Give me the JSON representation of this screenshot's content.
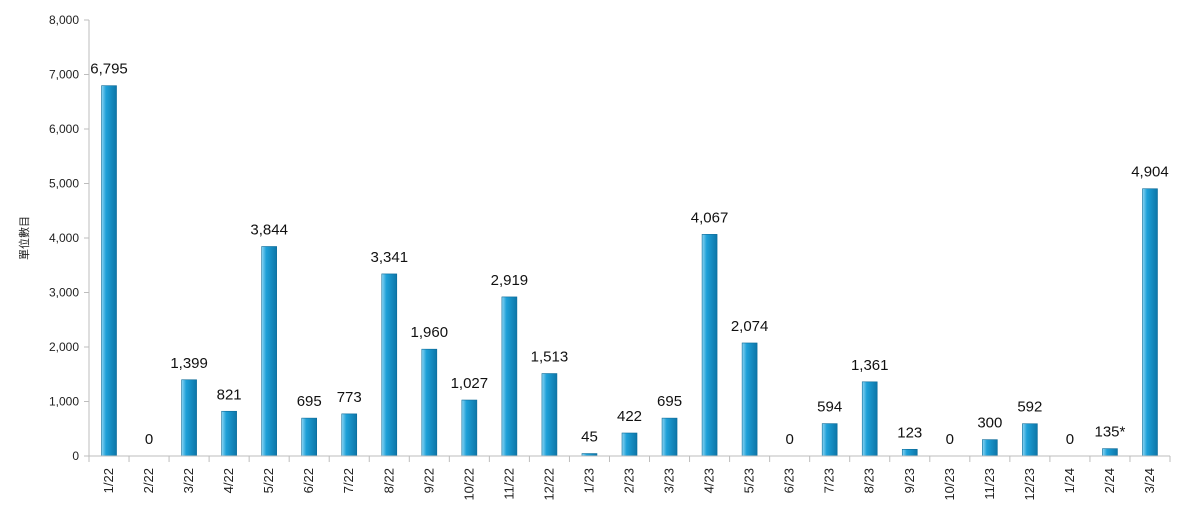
{
  "chart_data": {
    "type": "bar",
    "title": "",
    "xlabel": "",
    "ylabel": "單位數目",
    "ylim": [
      0,
      8000
    ],
    "yticks": [
      0,
      1000,
      2000,
      3000,
      4000,
      5000,
      6000,
      7000,
      8000
    ],
    "ytick_labels": [
      "0",
      "1,000",
      "2,000",
      "3,000",
      "4,000",
      "5,000",
      "6,000",
      "7,000",
      "8,000"
    ],
    "grid": false,
    "legend": "none",
    "bar_color": "#1ea0d8",
    "bar_highlight": "#8ed6f3",
    "categories": [
      "1/22",
      "2/22",
      "3/22",
      "4/22",
      "5/22",
      "6/22",
      "7/22",
      "8/22",
      "9/22",
      "10/22",
      "11/22",
      "12/22",
      "1/23",
      "2/23",
      "3/23",
      "4/23",
      "5/23",
      "6/23",
      "7/23",
      "8/23",
      "9/23",
      "10/23",
      "11/23",
      "12/23",
      "1/24",
      "2/24",
      "3/24"
    ],
    "values": [
      6795,
      0,
      1399,
      821,
      3844,
      695,
      773,
      3341,
      1960,
      1027,
      2919,
      1513,
      45,
      422,
      695,
      4067,
      2074,
      0,
      594,
      1361,
      123,
      0,
      300,
      592,
      0,
      135,
      4904
    ],
    "data_labels": [
      "6,795",
      "0",
      "1,399",
      "821",
      "3,844",
      "695",
      "773",
      "3,341",
      "1,960",
      "1,027",
      "2,919",
      "1,513",
      "45",
      "422",
      "695",
      "4,067",
      "2,074",
      "0",
      "594",
      "1,361",
      "123",
      "0",
      "300",
      "592",
      "0",
      "135*",
      "4,904"
    ]
  }
}
